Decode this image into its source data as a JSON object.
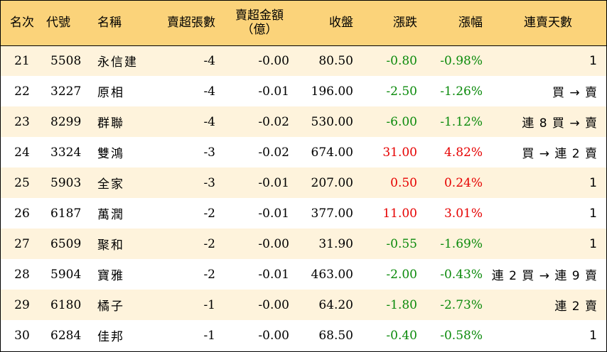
{
  "headers": {
    "rank": "名次",
    "code": "代號",
    "name": "名稱",
    "net_sell_lots": "賣超張數",
    "net_sell_amount_line1": "賣超金額",
    "net_sell_amount_line2": "（億）",
    "close": "收盤",
    "change": "漲跌",
    "change_pct": "漲幅",
    "consecutive_days": "連賣天數"
  },
  "colors": {
    "header_bg": "#fbd37a",
    "odd_row_bg": "#fef3dc",
    "up": "#e60000",
    "down": "#0b8a0b"
  },
  "rows": [
    {
      "rank": "21",
      "code": "5508",
      "name": "永信建",
      "lots": "-4",
      "amount": "-0.00",
      "close": "80.50",
      "change": "-0.80",
      "pct": "-0.98%",
      "days": "1",
      "dir": "down"
    },
    {
      "rank": "22",
      "code": "3227",
      "name": "原相",
      "lots": "-4",
      "amount": "-0.01",
      "close": "196.00",
      "change": "-2.50",
      "pct": "-1.26%",
      "days": "買 → 賣",
      "dir": "down"
    },
    {
      "rank": "23",
      "code": "8299",
      "name": "群聯",
      "lots": "-4",
      "amount": "-0.02",
      "close": "530.00",
      "change": "-6.00",
      "pct": "-1.12%",
      "days": "連 8 買 → 賣",
      "dir": "down"
    },
    {
      "rank": "24",
      "code": "3324",
      "name": "雙鴻",
      "lots": "-3",
      "amount": "-0.02",
      "close": "674.00",
      "change": "31.00",
      "pct": "4.82%",
      "days": "買 → 連 2 賣",
      "dir": "up"
    },
    {
      "rank": "25",
      "code": "5903",
      "name": "全家",
      "lots": "-3",
      "amount": "-0.01",
      "close": "207.00",
      "change": "0.50",
      "pct": "0.24%",
      "days": "1",
      "dir": "up"
    },
    {
      "rank": "26",
      "code": "6187",
      "name": "萬潤",
      "lots": "-2",
      "amount": "-0.01",
      "close": "377.00",
      "change": "11.00",
      "pct": "3.01%",
      "days": "1",
      "dir": "up"
    },
    {
      "rank": "27",
      "code": "6509",
      "name": "聚和",
      "lots": "-2",
      "amount": "-0.00",
      "close": "31.90",
      "change": "-0.55",
      "pct": "-1.69%",
      "days": "1",
      "dir": "down"
    },
    {
      "rank": "28",
      "code": "5904",
      "name": "寶雅",
      "lots": "-2",
      "amount": "-0.01",
      "close": "463.00",
      "change": "-2.00",
      "pct": "-0.43%",
      "days": "連 2 買 → 連 9 賣",
      "dir": "down"
    },
    {
      "rank": "29",
      "code": "6180",
      "name": "橘子",
      "lots": "-1",
      "amount": "-0.00",
      "close": "64.20",
      "change": "-1.80",
      "pct": "-2.73%",
      "days": "連 2 賣",
      "dir": "down"
    },
    {
      "rank": "30",
      "code": "6284",
      "name": "佳邦",
      "lots": "-1",
      "amount": "-0.00",
      "close": "68.50",
      "change": "-0.40",
      "pct": "-0.58%",
      "days": "1",
      "dir": "down"
    }
  ]
}
